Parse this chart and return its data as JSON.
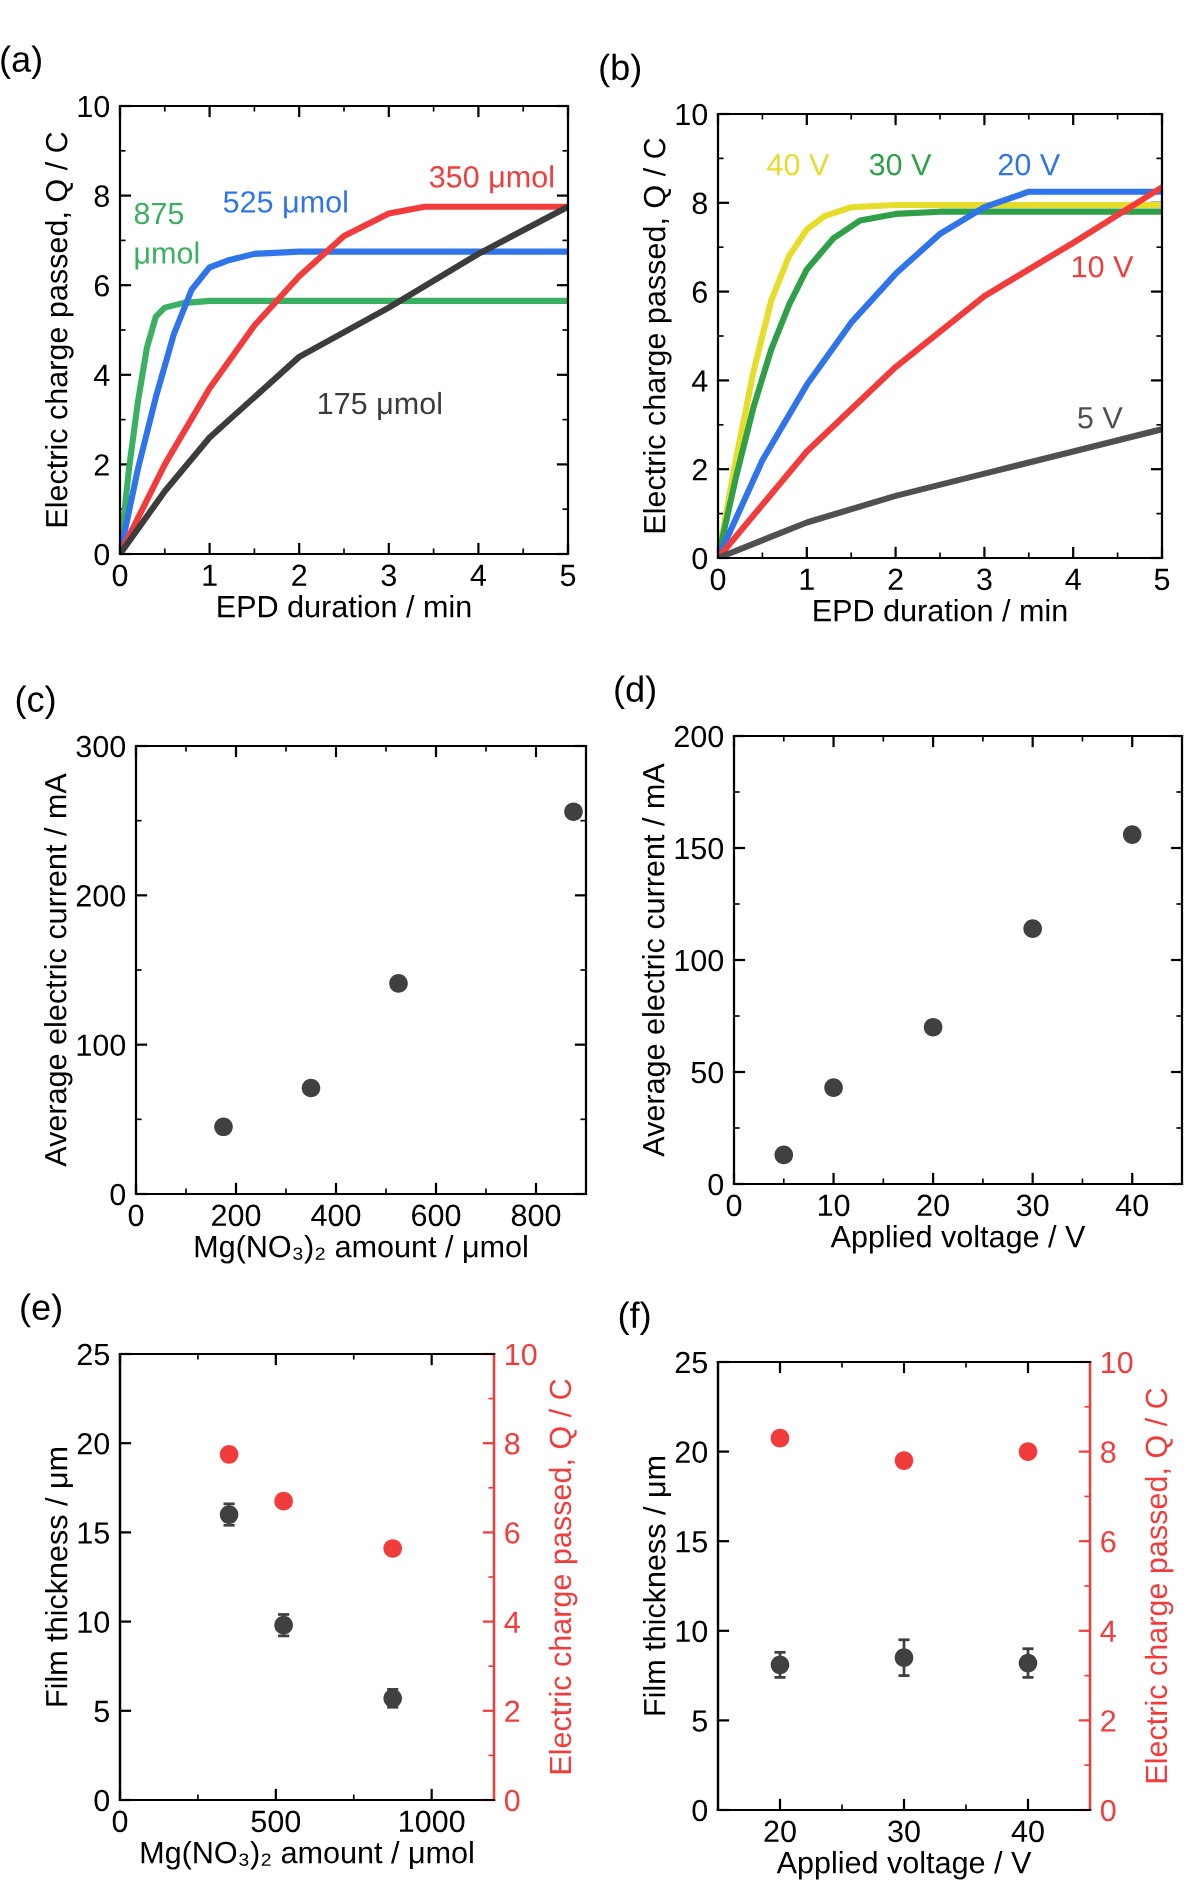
{
  "chart_data": [
    {
      "type": "line",
      "title": "(a)",
      "xlabel": "EPD duration / min",
      "ylabel": "Electric charge passed, Q / C",
      "xlim": [
        0,
        5
      ],
      "ylim": [
        0,
        10
      ],
      "xticks": [
        0,
        1,
        2,
        3,
        4,
        5,
        {
          "value": 0.5,
          "label": null
        },
        {
          "value": 1.5,
          "label": null
        },
        {
          "value": 2.5,
          "label": null
        },
        {
          "value": 3.5,
          "label": null
        },
        {
          "value": 4.5,
          "label": null
        }
      ],
      "yticks": [
        0,
        2,
        4,
        6,
        8,
        10,
        {
          "value": 1,
          "label": null
        },
        {
          "value": 3,
          "label": null
        },
        {
          "value": 5,
          "label": null
        },
        {
          "value": 7,
          "label": null
        },
        {
          "value": 9,
          "label": null
        }
      ],
      "series": [
        {
          "name": "875\nμmol",
          "color": "#3cb062",
          "x": [
            0,
            0.1,
            0.2,
            0.3,
            0.4,
            0.5,
            0.7,
            1.0,
            5
          ],
          "values": [
            0,
            1.9,
            3.4,
            4.6,
            5.3,
            5.5,
            5.6,
            5.65,
            5.65
          ]
        },
        {
          "name": "525 μmol",
          "color": "#2f74e8",
          "x": [
            0,
            0.2,
            0.4,
            0.6,
            0.8,
            1.0,
            1.2,
            1.5,
            2,
            5
          ],
          "values": [
            0,
            1.9,
            3.5,
            4.9,
            5.9,
            6.4,
            6.55,
            6.7,
            6.75,
            6.75
          ]
        },
        {
          "name": "350 μmol",
          "color": "#f23c3c",
          "x": [
            0,
            0.5,
            1,
            1.5,
            2,
            2.5,
            3,
            3.4,
            5
          ],
          "values": [
            0,
            2.0,
            3.7,
            5.1,
            6.2,
            7.1,
            7.6,
            7.75,
            7.75
          ]
        },
        {
          "name": "175 μmol",
          "color": "#3c3c3c",
          "x": [
            0,
            0.5,
            1,
            2,
            3,
            4,
            5
          ],
          "values": [
            0,
            1.4,
            2.6,
            4.4,
            5.5,
            6.7,
            7.75
          ]
        }
      ]
    },
    {
      "type": "line",
      "title": "(b)",
      "xlabel": "EPD duration / min",
      "ylabel": "Electric charge passed, Q / C",
      "xlim": [
        0,
        5
      ],
      "ylim": [
        0,
        10
      ],
      "xticks": [
        0,
        1,
        2,
        3,
        4,
        5,
        {
          "value": 0.5,
          "label": null
        },
        {
          "value": 1.5,
          "label": null
        },
        {
          "value": 2.5,
          "label": null
        },
        {
          "value": 3.5,
          "label": null
        },
        {
          "value": 4.5,
          "label": null
        }
      ],
      "yticks": [
        0,
        2,
        4,
        6,
        8,
        10,
        {
          "value": 1,
          "label": null
        },
        {
          "value": 3,
          "label": null
        },
        {
          "value": 5,
          "label": null
        },
        {
          "value": 7,
          "label": null
        },
        {
          "value": 9,
          "label": null
        }
      ],
      "series": [
        {
          "name": "40 V",
          "color": "#e6dc2a",
          "x": [
            0,
            0.2,
            0.4,
            0.6,
            0.8,
            1.0,
            1.2,
            1.5,
            2,
            5
          ],
          "values": [
            0,
            2.2,
            4.2,
            5.8,
            6.8,
            7.4,
            7.7,
            7.9,
            7.95,
            7.95
          ]
        },
        {
          "name": "30 V",
          "color": "#2fa048",
          "x": [
            0,
            0.2,
            0.4,
            0.6,
            0.8,
            1.0,
            1.3,
            1.6,
            2,
            2.5,
            5
          ],
          "values": [
            0,
            1.8,
            3.4,
            4.7,
            5.7,
            6.5,
            7.2,
            7.6,
            7.75,
            7.8,
            7.8
          ]
        },
        {
          "name": "20 V",
          "color": "#2f74e8",
          "x": [
            0,
            0.5,
            1,
            1.5,
            2,
            2.5,
            3,
            3.5,
            5
          ],
          "values": [
            0,
            2.2,
            3.9,
            5.3,
            6.4,
            7.3,
            7.9,
            8.25,
            8.25
          ]
        },
        {
          "name": "10 V",
          "color": "#f23c3c",
          "x": [
            0,
            1,
            2,
            3,
            4,
            5
          ],
          "values": [
            0,
            2.4,
            4.3,
            5.9,
            7.1,
            8.35
          ]
        },
        {
          "name": "5 V",
          "color": "#505050",
          "x": [
            0,
            1,
            2,
            3,
            4,
            5
          ],
          "values": [
            0,
            0.8,
            1.4,
            1.9,
            2.4,
            2.9
          ]
        }
      ]
    },
    {
      "type": "scatter",
      "title": "(c)",
      "xlabel": "Mg(NO₃)₂ amount / μmol",
      "ylabel": "Average electric current / mA",
      "xlim": [
        0,
        900
      ],
      "ylim": [
        0,
        300
      ],
      "xticks": [
        0,
        200,
        400,
        600,
        800,
        {
          "value": 100,
          "label": null
        },
        {
          "value": 300,
          "label": null
        },
        {
          "value": 500,
          "label": null
        },
        {
          "value": 700,
          "label": null
        }
      ],
      "yticks": [
        0,
        100,
        200,
        300,
        {
          "value": 50,
          "label": null
        },
        {
          "value": 150,
          "label": null
        },
        {
          "value": 250,
          "label": null
        }
      ],
      "series": [
        {
          "color": "#404040",
          "x": [
            175,
            350,
            525,
            875
          ],
          "values": [
            45,
            71,
            141,
            256
          ]
        }
      ]
    },
    {
      "type": "scatter",
      "title": "(d)",
      "xlabel": "Applied voltage / V",
      "ylabel": "Average electric current / mA",
      "xlim": [
        0,
        45
      ],
      "ylim": [
        0,
        200
      ],
      "xticks": [
        0,
        10,
        20,
        30,
        40,
        {
          "value": 5,
          "label": null
        },
        {
          "value": 15,
          "label": null
        },
        {
          "value": 25,
          "label": null
        },
        {
          "value": 35,
          "label": null
        }
      ],
      "yticks": [
        0,
        50,
        100,
        150,
        200,
        {
          "value": 25,
          "label": null
        },
        {
          "value": 75,
          "label": null
        },
        {
          "value": 125,
          "label": null
        },
        {
          "value": 175,
          "label": null
        }
      ],
      "series": [
        {
          "color": "#404040",
          "x": [
            5,
            10,
            20,
            30,
            40
          ],
          "values": [
            13,
            43,
            70,
            114,
            156
          ]
        }
      ]
    },
    {
      "type": "scatter",
      "title": "(e)",
      "xlabel": "Mg(NO₃)₂ amount / μmol",
      "ylabel": "Film thickness / μm",
      "y2label": "Electric charge passed, Q / C",
      "xlim": [
        0,
        1200
      ],
      "ylim": [
        0,
        25
      ],
      "y2lim": [
        0,
        10
      ],
      "xticks": [
        0,
        500,
        1000,
        {
          "value": 250,
          "label": null
        },
        {
          "value": 750,
          "label": null
        }
      ],
      "yticks": [
        0,
        5,
        10,
        15,
        20,
        25
      ],
      "y2ticks": [
        0,
        2,
        4,
        6,
        8,
        10,
        {
          "value": 1,
          "label": null
        },
        {
          "value": 3,
          "label": null
        },
        {
          "value": 5,
          "label": null
        },
        {
          "value": 7,
          "label": null
        },
        {
          "value": 9,
          "label": null
        }
      ],
      "series": [
        {
          "color": "#404040",
          "x": [
            350,
            525,
            875
          ],
          "values": [
            16.0,
            9.8,
            5.7
          ],
          "errors": [
            0.6,
            0.6,
            0.5
          ]
        },
        {
          "color": "#f23c3c",
          "axis": "y2",
          "x": [
            350,
            525,
            875
          ],
          "values": [
            7.75,
            6.7,
            5.64
          ]
        }
      ]
    },
    {
      "type": "scatter",
      "title": "(f)",
      "xlabel": "Applied voltage / V",
      "ylabel": "Film thickness / μm",
      "y2label": "Electric charge passed, Q / C",
      "xlim": [
        15,
        45
      ],
      "ylim": [
        0,
        25
      ],
      "y2lim": [
        0,
        10
      ],
      "xticks": [
        20,
        30,
        40,
        {
          "value": 25,
          "label": null
        },
        {
          "value": 35,
          "label": null
        }
      ],
      "yticks": [
        0,
        5,
        10,
        15,
        20,
        25
      ],
      "y2ticks": [
        0,
        2,
        4,
        6,
        8,
        10,
        {
          "value": 1,
          "label": null
        },
        {
          "value": 3,
          "label": null
        },
        {
          "value": 5,
          "label": null
        },
        {
          "value": 7,
          "label": null
        },
        {
          "value": 9,
          "label": null
        }
      ],
      "series": [
        {
          "color": "#404040",
          "x": [
            20,
            30,
            40
          ],
          "values": [
            8.1,
            8.5,
            8.2
          ],
          "errors": [
            0.7,
            1.0,
            0.8
          ]
        },
        {
          "color": "#f23c3c",
          "axis": "y2",
          "x": [
            20,
            30,
            40
          ],
          "values": [
            8.3,
            7.8,
            8.0
          ]
        }
      ]
    }
  ]
}
